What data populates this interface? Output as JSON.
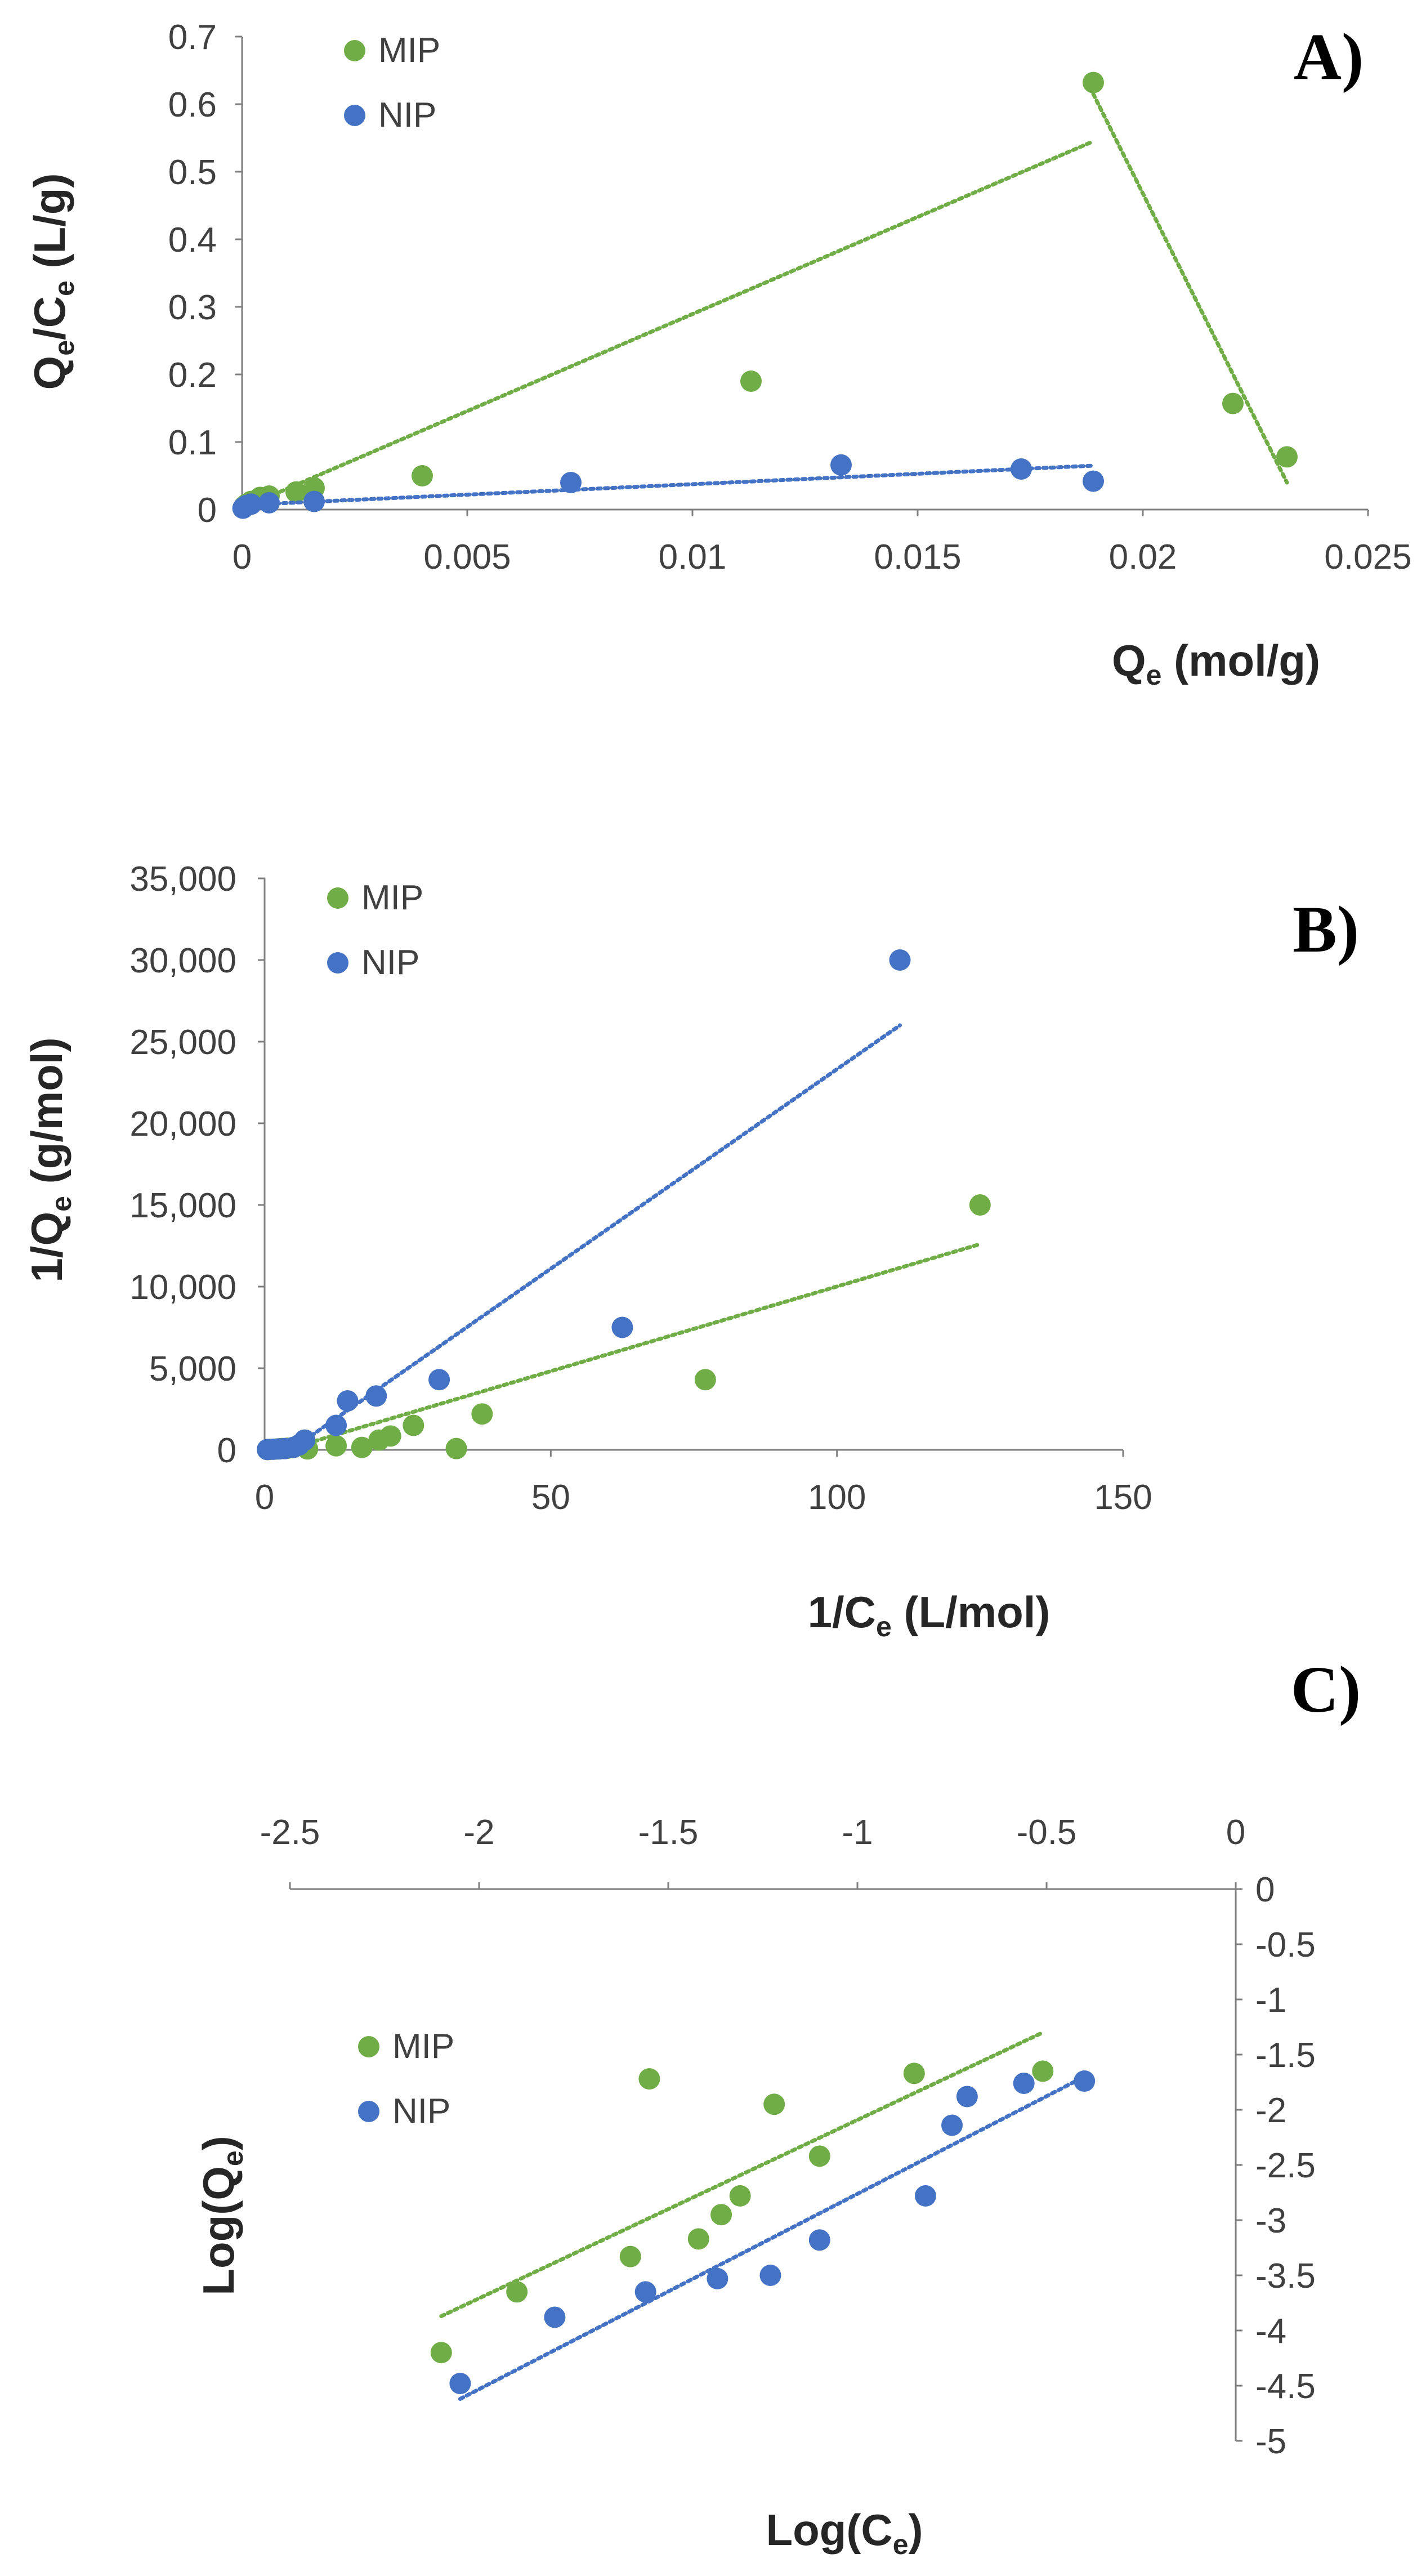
{
  "colors": {
    "mip": "#70ad47",
    "nip": "#4472c4",
    "axis": "#7f7f7f",
    "text": "#404040"
  },
  "chart_data": [
    {
      "type": "scatter",
      "panel": "A)",
      "xlabel": "Q",
      "xlabel_sub": "e",
      "xlabel_unit": " (mol/g)",
      "ylabel": "Q",
      "ylabel_sub1": "e",
      "ylabel_mid": "/C",
      "ylabel_sub2": "e",
      "ylabel_unit": " (L/g)",
      "xlim": [
        0,
        0.025
      ],
      "ylim": [
        0,
        0.7
      ],
      "xticks": [
        0,
        0.005,
        0.01,
        0.015,
        0.02,
        0.025
      ],
      "xtick_labels": [
        "0",
        "0.005",
        "0.01",
        "0.015",
        "0.02",
        "0.025"
      ],
      "yticks": [
        0,
        0.1,
        0.2,
        0.3,
        0.4,
        0.5,
        0.6,
        0.7
      ],
      "ytick_labels": [
        "0",
        "0.1",
        "0.2",
        "0.3",
        "0.4",
        "0.5",
        "0.6",
        "0.7"
      ],
      "legend": "top-left",
      "grid": false,
      "series": [
        {
          "name": "MIP",
          "points": [
            [
              5e-05,
              0.005
            ],
            [
              0.0001,
              0.008
            ],
            [
              0.0002,
              0.012
            ],
            [
              0.0004,
              0.018
            ],
            [
              0.0006,
              0.02
            ],
            [
              0.0012,
              0.026
            ],
            [
              0.0016,
              0.032
            ],
            [
              0.004,
              0.05
            ],
            [
              0.0113,
              0.19
            ],
            [
              0.0189,
              0.632
            ],
            [
              0.022,
              0.157
            ],
            [
              0.0232,
              0.078
            ]
          ],
          "trendlines": [
            [
              [
                0.0001,
                0.005
              ],
              [
                0.0189,
                0.545
              ]
            ],
            [
              [
                0.0189,
                0.615
              ],
              [
                0.0232,
                0.04
              ]
            ]
          ]
        },
        {
          "name": "NIP",
          "points": [
            [
              2e-05,
              0.002
            ],
            [
              5e-05,
              0.004
            ],
            [
              0.0001,
              0.006
            ],
            [
              0.0002,
              0.008
            ],
            [
              0.0006,
              0.01
            ],
            [
              0.0016,
              0.012
            ],
            [
              0.0073,
              0.04
            ],
            [
              0.0133,
              0.066
            ],
            [
              0.0173,
              0.06
            ],
            [
              0.0189,
              0.042
            ]
          ],
          "trendlines": [
            [
              [
                0.0001,
                0.007
              ],
              [
                0.0189,
                0.065
              ]
            ]
          ]
        }
      ]
    },
    {
      "type": "scatter",
      "panel": "B)",
      "xlabel": "1/C",
      "xlabel_sub": "e",
      "xlabel_unit": " (L/mol)",
      "ylabel": "1/Q",
      "ylabel_sub1": "e",
      "ylabel_mid": "",
      "ylabel_sub2": "",
      "ylabel_unit": " (g/mol)",
      "xlim": [
        0,
        150
      ],
      "ylim": [
        0,
        35000
      ],
      "xticks": [
        0,
        50,
        100,
        150
      ],
      "xtick_labels": [
        "0",
        "50",
        "100",
        "150"
      ],
      "yticks": [
        0,
        5000,
        10000,
        15000,
        20000,
        25000,
        30000,
        35000
      ],
      "ytick_labels": [
        "0",
        "5,000",
        "10,000",
        "15,000",
        "20,000",
        "25,000",
        "30,000",
        "35,000"
      ],
      "legend": "top-left",
      "grid": false,
      "series": [
        {
          "name": "MIP",
          "points": [
            [
              0.5,
              20
            ],
            [
              1,
              30
            ],
            [
              2,
              50
            ],
            [
              3,
              80
            ],
            [
              4,
              100
            ],
            [
              7.5,
              60
            ],
            [
              12.5,
              250
            ],
            [
              17,
              150
            ],
            [
              20,
              600
            ],
            [
              22,
              850
            ],
            [
              26,
              1500
            ],
            [
              33.5,
              80
            ],
            [
              38,
              2200
            ],
            [
              77,
              4300
            ],
            [
              125,
              15000
            ]
          ],
          "trendlines": [
            [
              [
                5,
                150
              ],
              [
                125,
                12600
              ]
            ]
          ]
        },
        {
          "name": "NIP",
          "points": [
            [
              0.5,
              20
            ],
            [
              1.5,
              40
            ],
            [
              2.5,
              60
            ],
            [
              3.5,
              80
            ],
            [
              5,
              150
            ],
            [
              6,
              300
            ],
            [
              7,
              600
            ],
            [
              12.5,
              1500
            ],
            [
              14.5,
              3000
            ],
            [
              19.5,
              3300
            ],
            [
              30.5,
              4300
            ],
            [
              62.5,
              7500
            ],
            [
              111,
              30000
            ]
          ],
          "trendlines": [
            [
              [
                5,
                100
              ],
              [
                111,
                26000
              ]
            ]
          ]
        }
      ]
    },
    {
      "type": "scatter",
      "panel": "C)",
      "xlabel": "Log(C",
      "xlabel_sub": "e",
      "xlabel_unit": ")",
      "ylabel": "Log(Q",
      "ylabel_sub1": "e",
      "ylabel_mid": "",
      "ylabel_sub2": "",
      "ylabel_unit": ")",
      "xlim": [
        -2.5,
        0
      ],
      "ylim": [
        -5,
        0
      ],
      "xticks": [
        -2.5,
        -2,
        -1.5,
        -1,
        -0.5,
        0
      ],
      "xtick_labels": [
        "-2.5",
        "-2",
        "-1.5",
        "-1",
        "-0.5",
        "0"
      ],
      "yticks": [
        0,
        -0.5,
        -1,
        -1.5,
        -2,
        -2.5,
        -3,
        -3.5,
        -4,
        -4.5,
        -5
      ],
      "ytick_labels": [
        "0",
        "-0.5",
        "-1",
        "-1.5",
        "-2",
        "-2.5",
        "-3",
        "-3.5",
        "-4",
        "-4.5",
        "-5"
      ],
      "axes_position": "x-axis on top, y-axis on right",
      "legend": "top-left",
      "grid": false,
      "series": [
        {
          "name": "MIP",
          "points": [
            [
              -2.1,
              -4.2
            ],
            [
              -1.9,
              -3.65
            ],
            [
              -1.6,
              -3.33
            ],
            [
              -1.55,
              -1.72
            ],
            [
              -1.42,
              -3.17
            ],
            [
              -1.36,
              -2.95
            ],
            [
              -1.31,
              -2.78
            ],
            [
              -1.22,
              -1.95
            ],
            [
              -1.1,
              -2.42
            ],
            [
              -0.85,
              -1.67
            ],
            [
              -0.51,
              -1.65
            ]
          ],
          "trendlines": [
            [
              [
                -2.1,
                -3.87
              ],
              [
                -0.51,
                -1.3
              ]
            ]
          ]
        },
        {
          "name": "NIP",
          "points": [
            [
              -2.05,
              -4.48
            ],
            [
              -1.8,
              -3.88
            ],
            [
              -1.56,
              -3.65
            ],
            [
              -1.37,
              -3.53
            ],
            [
              -1.23,
              -3.5
            ],
            [
              -1.1,
              -3.18
            ],
            [
              -0.82,
              -2.78
            ],
            [
              -0.75,
              -2.14
            ],
            [
              -0.71,
              -1.88
            ],
            [
              -0.56,
              -1.76
            ],
            [
              -0.4,
              -1.74
            ]
          ],
          "trendlines": [
            [
              [
                -2.05,
                -4.62
              ],
              [
                -0.4,
                -1.7
              ]
            ]
          ]
        }
      ]
    }
  ]
}
